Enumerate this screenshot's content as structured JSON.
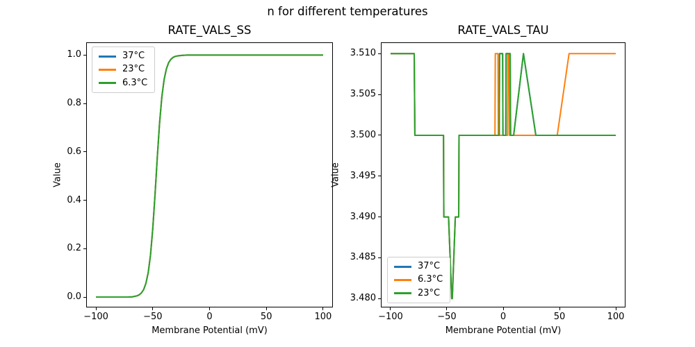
{
  "figure": {
    "suptitle": "n for different temperatures",
    "background": "#ffffff"
  },
  "colors": {
    "blue": "#1f77b4",
    "orange": "#ff7f0e",
    "green": "#2ca02c"
  },
  "chart_data": [
    {
      "id": "rate_vals_ss",
      "type": "line",
      "title": "RATE_VALS_SS",
      "xlabel": "Membrane Potential (mV)",
      "ylabel": "Value",
      "grid": false,
      "xlim": [
        -108,
        108
      ],
      "ylim": [
        -0.04,
        1.05
      ],
      "xticks": [
        -100,
        -50,
        0,
        50,
        100
      ],
      "xtick_labels": [
        "−100",
        "−50",
        "0",
        "50",
        "100"
      ],
      "yticks": [
        0.0,
        0.2,
        0.4,
        0.6,
        0.8,
        1.0
      ],
      "ytick_labels": [
        "0.0",
        "0.2",
        "0.4",
        "0.6",
        "0.8",
        "1.0"
      ],
      "legend": {
        "position": "top-left",
        "entries": [
          {
            "label": "37°C",
            "color": "#1f77b4"
          },
          {
            "label": "23°C",
            "color": "#ff7f0e"
          },
          {
            "label": "6.3°C",
            "color": "#2ca02c"
          }
        ]
      },
      "series": [
        {
          "name": "37°C",
          "color": "#1f77b4",
          "x": [
            -100,
            -90,
            -80,
            -72,
            -68,
            -64,
            -62,
            -60,
            -58,
            -56,
            -54,
            -52,
            -50,
            -48,
            -47,
            -46,
            -44,
            -42,
            -40,
            -38,
            -36,
            -34,
            -32,
            -30,
            -28,
            -24,
            -20,
            -10,
            0,
            20,
            40,
            60,
            80,
            100
          ],
          "y": [
            0.0,
            0.0,
            0.0,
            0.0,
            0.001,
            0.005,
            0.009,
            0.017,
            0.031,
            0.057,
            0.101,
            0.173,
            0.282,
            0.423,
            0.5,
            0.578,
            0.719,
            0.827,
            0.899,
            0.943,
            0.969,
            0.983,
            0.991,
            0.995,
            0.997,
            0.999,
            1.0,
            1.0,
            1.0,
            1.0,
            1.0,
            1.0,
            1.0,
            1.0
          ]
        },
        {
          "name": "23°C",
          "color": "#ff7f0e",
          "x": [
            -100,
            -90,
            -80,
            -72,
            -68,
            -64,
            -62,
            -60,
            -58,
            -56,
            -54,
            -52,
            -50,
            -48,
            -47,
            -46,
            -44,
            -42,
            -40,
            -38,
            -36,
            -34,
            -32,
            -30,
            -28,
            -24,
            -20,
            -10,
            0,
            20,
            40,
            60,
            80,
            100
          ],
          "y": [
            0.0,
            0.0,
            0.0,
            0.0,
            0.001,
            0.005,
            0.009,
            0.017,
            0.031,
            0.057,
            0.101,
            0.173,
            0.282,
            0.423,
            0.5,
            0.578,
            0.719,
            0.827,
            0.899,
            0.943,
            0.969,
            0.983,
            0.991,
            0.995,
            0.997,
            0.999,
            1.0,
            1.0,
            1.0,
            1.0,
            1.0,
            1.0,
            1.0,
            1.0
          ]
        },
        {
          "name": "6.3°C",
          "color": "#2ca02c",
          "x": [
            -100,
            -90,
            -80,
            -72,
            -68,
            -64,
            -62,
            -60,
            -58,
            -56,
            -54,
            -52,
            -50,
            -48,
            -47,
            -46,
            -44,
            -42,
            -40,
            -38,
            -36,
            -34,
            -32,
            -30,
            -28,
            -24,
            -20,
            -10,
            0,
            20,
            40,
            60,
            80,
            100
          ],
          "y": [
            0.0,
            0.0,
            0.0,
            0.0,
            0.001,
            0.005,
            0.009,
            0.017,
            0.031,
            0.057,
            0.101,
            0.173,
            0.282,
            0.423,
            0.5,
            0.578,
            0.719,
            0.827,
            0.899,
            0.943,
            0.969,
            0.983,
            0.991,
            0.995,
            0.997,
            0.999,
            1.0,
            1.0,
            1.0,
            1.0,
            1.0,
            1.0,
            1.0,
            1.0
          ]
        }
      ]
    },
    {
      "id": "rate_vals_tau",
      "type": "line",
      "title": "RATE_VALS_TAU",
      "xlabel": "Membrane Potential (mV)",
      "ylabel": "Value",
      "grid": false,
      "xlim": [
        -108,
        108
      ],
      "ylim": [
        3.479,
        3.5113
      ],
      "xticks": [
        -100,
        -50,
        0,
        50,
        100
      ],
      "xtick_labels": [
        "−100",
        "−50",
        "0",
        "50",
        "100"
      ],
      "yticks": [
        3.48,
        3.485,
        3.49,
        3.495,
        3.5,
        3.505,
        3.51
      ],
      "ytick_labels": [
        "3.480",
        "3.485",
        "3.490",
        "3.495",
        "3.500",
        "3.505",
        "3.510"
      ],
      "legend": {
        "position": "bottom-left",
        "entries": [
          {
            "label": "37°C",
            "color": "#1f77b4"
          },
          {
            "label": "6.3°C",
            "color": "#ff7f0e"
          },
          {
            "label": "23°C",
            "color": "#2ca02c"
          }
        ]
      },
      "series": [
        {
          "name": "37°C",
          "color": "#1f77b4",
          "x": [
            -100,
            -79,
            -78.4,
            -53,
            -52.7,
            -48.5,
            -45.7,
            -45.2,
            -42.5,
            -39.5,
            -39.2,
            -3.5,
            -3.2,
            -0.5,
            -0.2,
            2.3,
            2.6,
            6.2,
            6.6,
            9.3,
            18,
            29,
            100
          ],
          "y": [
            3.51,
            3.51,
            3.5,
            3.5,
            3.49,
            3.49,
            3.48,
            3.48,
            3.49,
            3.49,
            3.5,
            3.5,
            3.51,
            3.51,
            3.5,
            3.5,
            3.51,
            3.51,
            3.5,
            3.5,
            3.51,
            3.5,
            3.5
          ]
        },
        {
          "name": "6.3°C",
          "color": "#ff7f0e",
          "x": [
            -100,
            -79,
            -78.4,
            -53,
            -52.7,
            -48.5,
            -45.7,
            -45.2,
            -42.5,
            -39.5,
            -39.2,
            -7.3,
            -7,
            -4.6,
            -4.3,
            3.9,
            4.2,
            5.2,
            5.5,
            48,
            58.5,
            100
          ],
          "y": [
            3.51,
            3.51,
            3.5,
            3.5,
            3.49,
            3.49,
            3.48,
            3.48,
            3.49,
            3.49,
            3.5,
            3.5,
            3.51,
            3.51,
            3.5,
            3.5,
            3.51,
            3.51,
            3.5,
            3.5,
            3.51,
            3.51
          ]
        },
        {
          "name": "23°C",
          "color": "#2ca02c",
          "x": [
            -100,
            -79,
            -78.4,
            -53,
            -52.7,
            -48.5,
            -45.7,
            -45.2,
            -42.5,
            -39.5,
            -39.2,
            -3.5,
            -3.2,
            -0.5,
            -0.2,
            2.3,
            2.6,
            6.2,
            6.6,
            9.3,
            18,
            29,
            100
          ],
          "y": [
            3.51,
            3.51,
            3.5,
            3.5,
            3.49,
            3.49,
            3.48,
            3.48,
            3.49,
            3.49,
            3.5,
            3.5,
            3.51,
            3.51,
            3.5,
            3.5,
            3.51,
            3.51,
            3.5,
            3.5,
            3.51,
            3.5,
            3.5
          ]
        }
      ]
    }
  ]
}
